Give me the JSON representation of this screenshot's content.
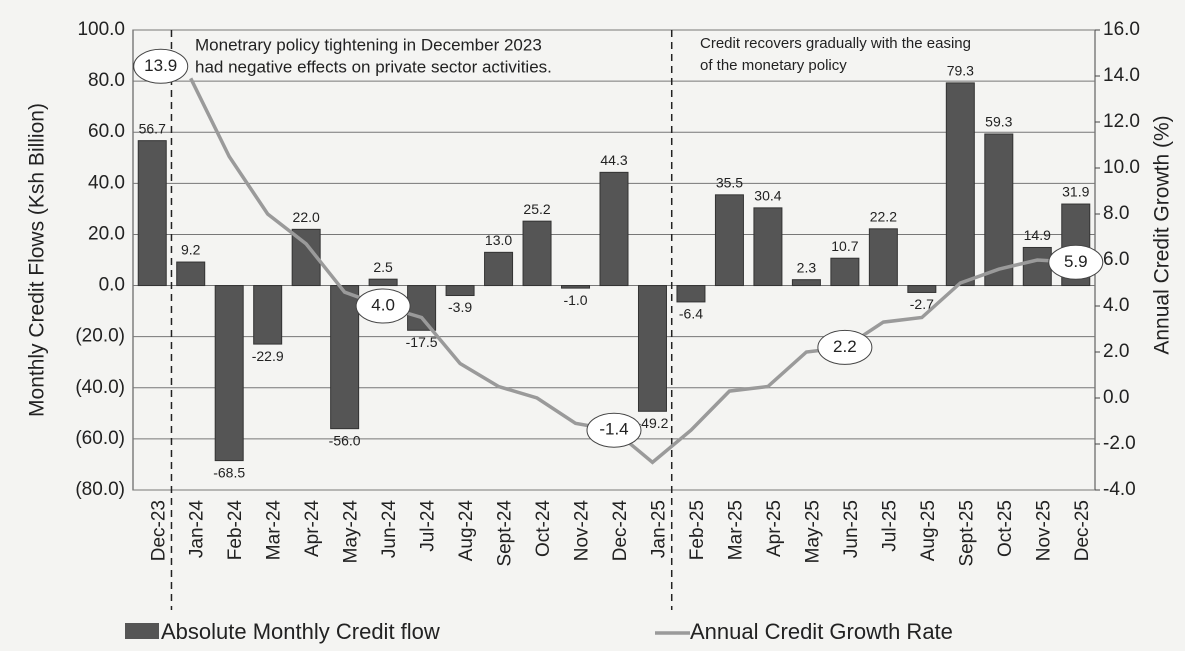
{
  "chart_data": {
    "type": "bar-line",
    "categories": [
      "Dec-23",
      "Jan-24",
      "Feb-24",
      "Mar-24",
      "Apr-24",
      "May-24",
      "Jun-24",
      "Jul-24",
      "Aug-24",
      "Sept-24",
      "Oct-24",
      "Nov-24",
      "Dec-24",
      "Jan-25",
      "Feb-25",
      "Mar-25",
      "Apr-25",
      "May-25",
      "Jun-25",
      "Jul-25",
      "Aug-25",
      "Sept-25",
      "Oct-25",
      "Nov-25",
      "Dec-25"
    ],
    "series": [
      {
        "name": "Absolute Monthly Credit flow",
        "color": "#555555",
        "type": "bar",
        "values": [
          56.7,
          9.2,
          -68.5,
          -22.9,
          22.0,
          -56.0,
          2.5,
          -17.5,
          -3.9,
          13.0,
          25.2,
          -1.0,
          44.3,
          -49.2,
          -6.4,
          35.5,
          30.4,
          2.3,
          10.7,
          22.2,
          -2.7,
          79.3,
          59.3,
          14.9,
          31.9
        ],
        "value_labels": [
          "56.7",
          "9.2",
          "-68.5",
          "-22.9",
          "22.0",
          "-56.0",
          "2.5",
          "-17.5",
          "-3.9",
          "13.0",
          "25.2",
          "-1.0",
          "44.3",
          "-49.2",
          "-6.4",
          "35.5",
          "30.4",
          "2.3",
          "10.7",
          "22.2",
          "-2.7",
          "79.3",
          "59.3",
          "14.9",
          "31.9"
        ]
      },
      {
        "name": "Annual Credit Growth Rate",
        "color": "#9a9a9a",
        "type": "line",
        "axis": "y2",
        "values": [
          null,
          13.9,
          10.5,
          8.0,
          6.7,
          4.6,
          4.0,
          3.5,
          1.5,
          0.5,
          0.0,
          -1.1,
          -1.4,
          -2.8,
          -1.4,
          0.3,
          0.5,
          2.0,
          2.2,
          3.3,
          3.5,
          5.0,
          5.6,
          6.0,
          5.9
        ],
        "value_labels": [
          null,
          "13.9",
          null,
          null,
          null,
          null,
          "4.0",
          null,
          null,
          null,
          null,
          null,
          "-1.4",
          null,
          null,
          null,
          null,
          null,
          "2.2",
          null,
          null,
          null,
          null,
          null,
          "5.9"
        ]
      }
    ],
    "ylabel": "Monthly Credit Flows (Ksh Billion)",
    "y2label": "Annual Credit Growth (%)",
    "ylim": [
      -80,
      100
    ],
    "yticks": [
      {
        "value": 100,
        "label": "100.0"
      },
      {
        "value": 80,
        "label": "80.0"
      },
      {
        "value": 60,
        "label": "60.0"
      },
      {
        "value": 40,
        "label": "40.0"
      },
      {
        "value": 20,
        "label": "20.0"
      },
      {
        "value": 0,
        "label": "0.0"
      },
      {
        "value": -20,
        "label": "(20.0)"
      },
      {
        "value": -40,
        "label": "(40.0)"
      },
      {
        "value": -60,
        "label": "(60.0)"
      },
      {
        "value": -80,
        "label": "(80.0)"
      }
    ],
    "y2lim": [
      -4,
      16
    ],
    "y2ticks": [
      {
        "value": 16,
        "label": "16.0"
      },
      {
        "value": 14,
        "label": "14.0"
      },
      {
        "value": 12,
        "label": "12.0"
      },
      {
        "value": 10,
        "label": "10.0"
      },
      {
        "value": 8,
        "label": "8.0"
      },
      {
        "value": 6,
        "label": "6.0"
      },
      {
        "value": 4,
        "label": "4.0"
      },
      {
        "value": 2,
        "label": "2.0"
      },
      {
        "value": 0,
        "label": "0.0"
      },
      {
        "value": -2,
        "label": "-2.0"
      },
      {
        "value": -4,
        "label": "-4.0"
      }
    ],
    "grid": true,
    "annotations": [
      {
        "lines": [
          "Monetrary policy tightening in December 2023",
          "had negative effects on private sector activities."
        ]
      },
      {
        "lines": [
          "Credit recovers gradually with the easing",
          "of the monetary policy"
        ]
      }
    ],
    "legend": "bottom"
  }
}
